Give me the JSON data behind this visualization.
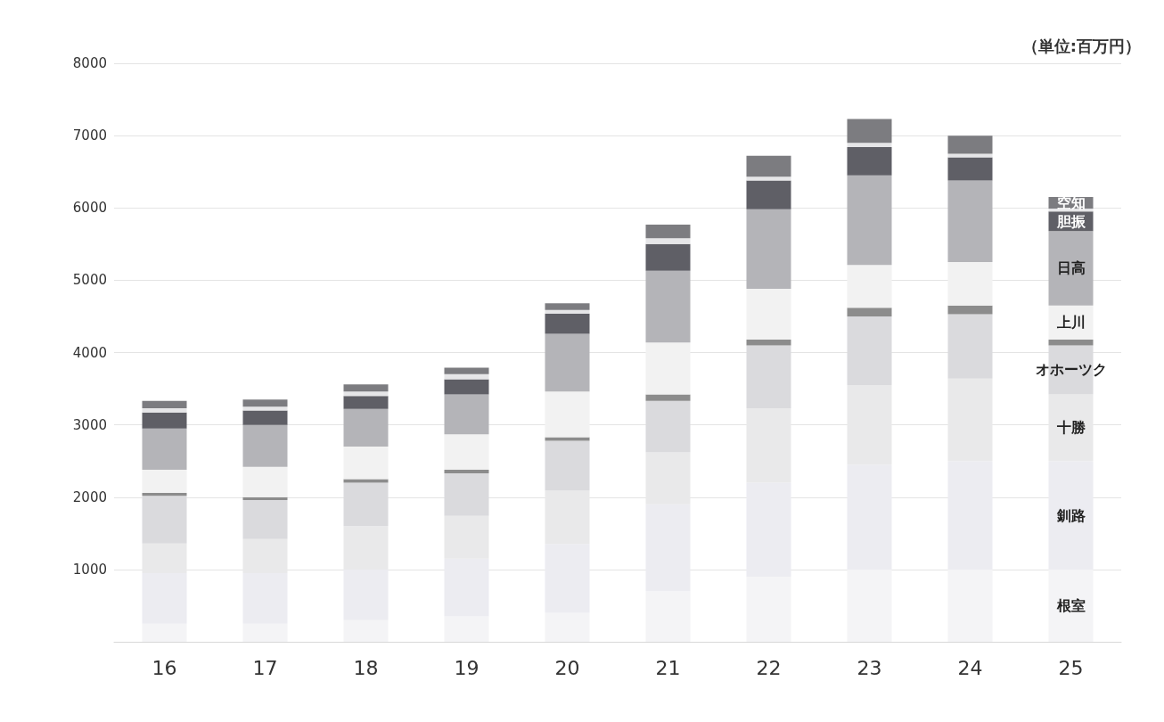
{
  "chart_data": {
    "type": "bar",
    "stacked": true,
    "categories": [
      "16",
      "17",
      "18",
      "19",
      "20",
      "21",
      "22",
      "23",
      "24",
      "25"
    ],
    "series": [
      {
        "name": "根室",
        "color": "#f4f4f6",
        "values": [
          250,
          250,
          300,
          350,
          400,
          700,
          900,
          1000,
          1000,
          1000
        ]
      },
      {
        "name": "釧路",
        "color": "#ececf1",
        "values": [
          700,
          700,
          700,
          800,
          950,
          1200,
          1300,
          1450,
          1500,
          1500
        ]
      },
      {
        "name": "十勝",
        "color": "#e9e9ea",
        "values": [
          410,
          470,
          600,
          590,
          740,
          720,
          1030,
          1100,
          1140,
          920
        ]
      },
      {
        "name": "オホーツク",
        "color": "#dadadd",
        "values": [
          660,
          540,
          600,
          590,
          690,
          710,
          870,
          950,
          890,
          680
        ]
      },
      {
        "color": "#8c8c8c",
        "values": [
          40,
          40,
          50,
          50,
          50,
          90,
          80,
          120,
          120,
          80
        ]
      },
      {
        "name": "上川",
        "color": "#f2f2f2",
        "values": [
          320,
          420,
          450,
          490,
          630,
          720,
          700,
          590,
          600,
          470
        ]
      },
      {
        "name": "日高",
        "color": "#b4b4b8",
        "values": [
          570,
          580,
          520,
          550,
          800,
          990,
          1100,
          1240,
          1130,
          1030
        ]
      },
      {
        "name": "胆振",
        "color": "#5f5f66",
        "values": [
          220,
          200,
          180,
          210,
          280,
          370,
          400,
          390,
          320,
          270
        ]
      },
      {
        "color": "#e6e6e8",
        "values": [
          60,
          50,
          60,
          70,
          50,
          80,
          50,
          60,
          50,
          40
        ]
      },
      {
        "name": "空知",
        "color": "#7c7c80",
        "values": [
          100,
          100,
          100,
          90,
          90,
          190,
          290,
          330,
          250,
          160
        ]
      }
    ],
    "ylim": [
      0,
      8000
    ],
    "yticks": [
      {
        "value": 0,
        "label": null
      },
      1000,
      2000,
      3000,
      4000,
      5000,
      6000,
      7000,
      8000
    ],
    "grid": "y",
    "annotations": [
      "（単位:百万円）"
    ]
  }
}
